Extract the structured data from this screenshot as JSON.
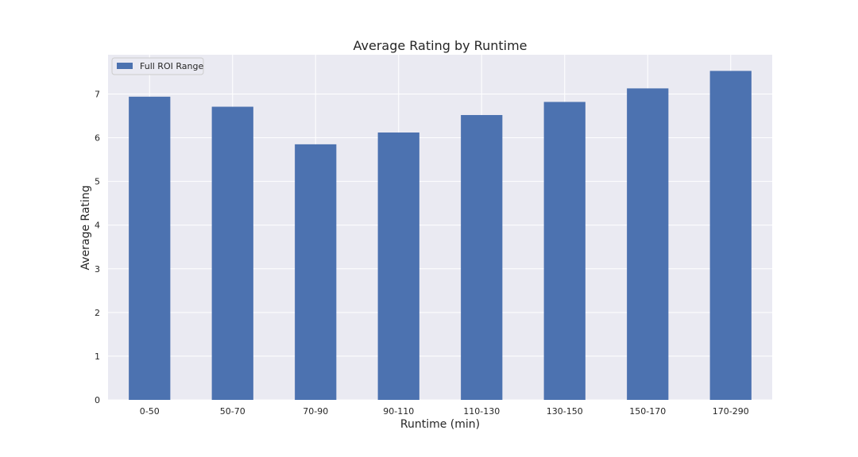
{
  "chart_data": {
    "type": "bar",
    "title": "Average Rating by Runtime",
    "xlabel": "Runtime (min)",
    "ylabel": "Average Rating",
    "categories": [
      "0-50",
      "50-70",
      "70-90",
      "90-110",
      "110-130",
      "130-150",
      "150-170",
      "170-290"
    ],
    "series": [
      {
        "name": "Full ROI Range",
        "color": "#4c72b0",
        "values": [
          6.94,
          6.71,
          5.85,
          6.12,
          6.52,
          6.82,
          7.13,
          7.53
        ]
      }
    ],
    "ylim": [
      0,
      7.9
    ],
    "yticks": [
      0,
      1,
      2,
      3,
      4,
      5,
      6,
      7
    ],
    "grid": true,
    "legend_position": "top-left",
    "plot_background": "#eaeaf2",
    "grid_color": "#ffffff"
  }
}
